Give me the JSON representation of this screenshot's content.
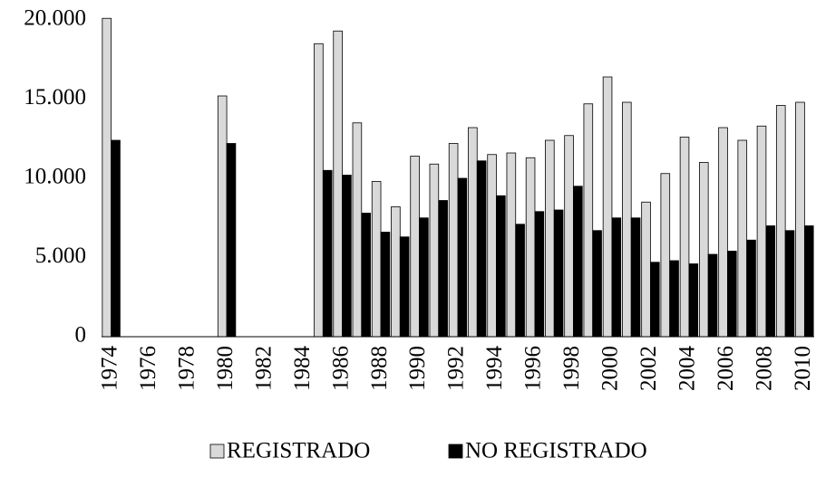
{
  "chart_data": {
    "type": "bar",
    "categories": [
      "1974",
      null,
      "1976",
      null,
      "1978",
      null,
      "1980",
      null,
      "1982",
      null,
      "1984",
      null,
      "1986",
      null,
      "1988",
      null,
      "1990",
      null,
      "1992",
      null,
      "1994",
      null,
      "1996",
      null,
      "1998",
      null,
      "2000",
      null,
      "2002",
      null,
      "2004",
      null,
      "2006",
      null,
      "2008",
      null,
      "2010"
    ],
    "series": [
      {
        "name": "REGISTRADO",
        "color": "#d9d9d9",
        "values": [
          20100,
          null,
          null,
          null,
          null,
          null,
          15200,
          null,
          null,
          null,
          null,
          18500,
          19300,
          13500,
          9800,
          8200,
          11400,
          10900,
          12200,
          13200,
          11500,
          11600,
          11300,
          12400,
          12700,
          14700,
          16400,
          14800,
          8500,
          10300,
          12600,
          11000,
          13200,
          12400,
          13300,
          14600,
          14800
        ]
      },
      {
        "name": "NO REGISTRADO",
        "color": "#000000",
        "values": [
          12400,
          null,
          null,
          null,
          null,
          null,
          12200,
          null,
          null,
          null,
          null,
          10500,
          10200,
          7800,
          6600,
          6300,
          7500,
          8600,
          10000,
          11100,
          8900,
          7100,
          7900,
          8000,
          9500,
          6700,
          7500,
          7500,
          4700,
          4800,
          4600,
          5200,
          5400,
          6100,
          7000,
          6700,
          7000
        ]
      }
    ],
    "ylim": [
      0,
      20400
    ],
    "yticks": [
      0,
      {
        "value": 5000,
        "label": "5.000"
      },
      {
        "value": 10000,
        "label": "10.000"
      },
      {
        "value": 15000,
        "label": "15.000"
      },
      {
        "value": 20000,
        "label": "20.000"
      }
    ],
    "grid": false
  }
}
